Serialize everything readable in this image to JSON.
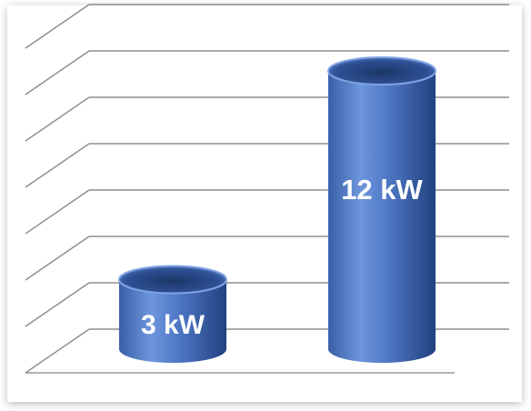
{
  "chart_data": {
    "type": "bar",
    "style": "3d-cylinder",
    "categories": [
      "",
      ""
    ],
    "values": [
      3,
      12
    ],
    "data_labels": [
      "3 kW",
      "12 kW"
    ],
    "unit": "kW",
    "title": "",
    "xlabel": "",
    "ylabel": "",
    "ylim": [
      0,
      14
    ],
    "gridlines": 7,
    "grid": true,
    "legend": "none",
    "bar_color": "#4a72c4"
  }
}
